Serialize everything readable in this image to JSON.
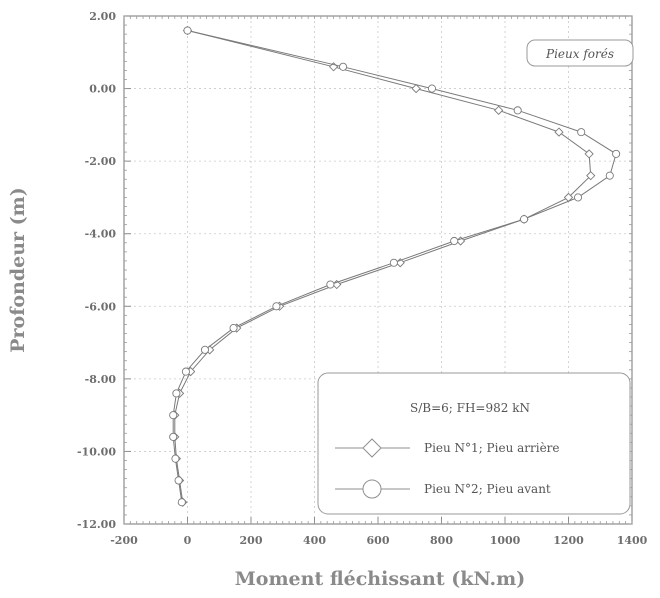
{
  "chart_data": {
    "type": "line",
    "xlabel": "Moment fléchissant (kN.m)",
    "ylabel": "Profondeur (m)",
    "xlim": [
      -200,
      1400
    ],
    "ylim": [
      -12,
      2
    ],
    "x_ticks": [
      "-200",
      "0",
      "200",
      "400",
      "600",
      "800",
      "1000",
      "1200",
      "1400"
    ],
    "y_ticks": [
      "2.00",
      "0.00",
      "-2.00",
      "-4.00",
      "-6.00",
      "-8.00",
      "-10.00",
      "-12.00"
    ],
    "grid": true,
    "annotation": "Pieux forés",
    "legend_title": "S/B=6; FH=982 kN",
    "legend_position": "bottom-right",
    "series": [
      {
        "name": "Pieu N°1; Pieu arrière",
        "marker": "diamond",
        "points": [
          [
            0,
            1.6
          ],
          [
            460,
            0.6
          ],
          [
            720,
            0.0
          ],
          [
            980,
            -0.6
          ],
          [
            1170,
            -1.2
          ],
          [
            1265,
            -1.8
          ],
          [
            1270,
            -2.4
          ],
          [
            1200,
            -3.0
          ],
          [
            1060,
            -3.6
          ],
          [
            860,
            -4.2
          ],
          [
            670,
            -4.8
          ],
          [
            470,
            -5.4
          ],
          [
            290,
            -6.0
          ],
          [
            155,
            -6.6
          ],
          [
            70,
            -7.2
          ],
          [
            10,
            -7.8
          ],
          [
            -25,
            -8.4
          ],
          [
            -40,
            -9.0
          ],
          [
            -40,
            -9.6
          ],
          [
            -35,
            -10.2
          ],
          [
            -25,
            -10.8
          ],
          [
            -15,
            -11.4
          ]
        ]
      },
      {
        "name": "Pieu N°2; Pieu avant",
        "marker": "circle",
        "points": [
          [
            0,
            1.6
          ],
          [
            490,
            0.6
          ],
          [
            770,
            0.0
          ],
          [
            1040,
            -0.6
          ],
          [
            1240,
            -1.2
          ],
          [
            1350,
            -1.8
          ],
          [
            1330,
            -2.4
          ],
          [
            1230,
            -3.0
          ],
          [
            1060,
            -3.6
          ],
          [
            840,
            -4.2
          ],
          [
            650,
            -4.8
          ],
          [
            450,
            -5.4
          ],
          [
            280,
            -6.0
          ],
          [
            145,
            -6.6
          ],
          [
            55,
            -7.2
          ],
          [
            -5,
            -7.8
          ],
          [
            -35,
            -8.4
          ],
          [
            -45,
            -9.0
          ],
          [
            -45,
            -9.6
          ],
          [
            -38,
            -10.2
          ],
          [
            -28,
            -10.8
          ],
          [
            -18,
            -11.4
          ]
        ]
      }
    ]
  }
}
